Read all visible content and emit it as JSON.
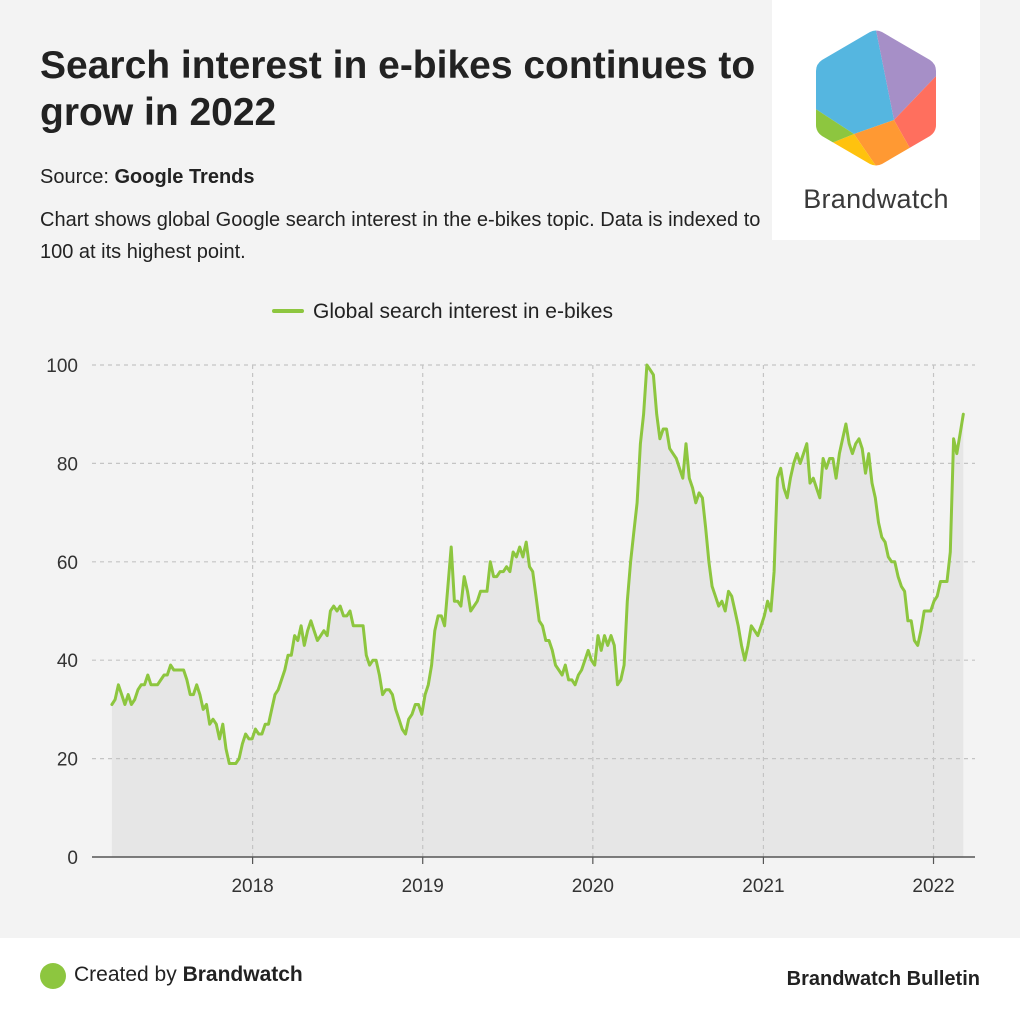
{
  "header": {
    "title": "Search interest in e-bikes continues to grow in 2022",
    "source_label": "Source:",
    "source_name": "Google Trends",
    "description": "Chart shows global Google search interest in the e-bikes topic. Data is indexed to 100 at its highest point."
  },
  "logo": {
    "name": "Brandwatch",
    "icon": "brandwatch-hexagon-logo",
    "colors": [
      "#55b6e0",
      "#a68fc7",
      "#ff6f5e",
      "#ff9933",
      "#ffc20e",
      "#8dc63f"
    ]
  },
  "footer": {
    "created_by_label": "Created by",
    "created_by_name": "Brandwatch",
    "bulletin": "Brandwatch Bulletin"
  },
  "colors": {
    "line": "#8dc63f",
    "area": "#e6e6e6",
    "grid": "#c4c4c4",
    "axis": "#555555"
  },
  "chart_data": {
    "type": "area",
    "title": "",
    "xlabel": "",
    "ylabel": "",
    "ylim": [
      0,
      100
    ],
    "yticks": [
      0,
      20,
      40,
      60,
      80,
      100
    ],
    "xticks": [
      "2018",
      "2019",
      "2020",
      "2021",
      "2022"
    ],
    "x_range": [
      "2017-03-01",
      "2022-03-31"
    ],
    "grid": true,
    "legend_position": "top-center",
    "series": [
      {
        "name": "Global search interest in e-bikes",
        "color": "#8dc63f",
        "points": [
          [
            "2017-03-05",
            31
          ],
          [
            "2017-03-12",
            32
          ],
          [
            "2017-03-19",
            35
          ],
          [
            "2017-03-26",
            33
          ],
          [
            "2017-04-02",
            31
          ],
          [
            "2017-04-09",
            33
          ],
          [
            "2017-04-16",
            31
          ],
          [
            "2017-04-23",
            32
          ],
          [
            "2017-04-30",
            34
          ],
          [
            "2017-05-07",
            35
          ],
          [
            "2017-05-14",
            35
          ],
          [
            "2017-05-21",
            37
          ],
          [
            "2017-05-28",
            35
          ],
          [
            "2017-06-04",
            35
          ],
          [
            "2017-06-11",
            35
          ],
          [
            "2017-06-18",
            36
          ],
          [
            "2017-06-25",
            37
          ],
          [
            "2017-07-02",
            37
          ],
          [
            "2017-07-09",
            39
          ],
          [
            "2017-07-16",
            38
          ],
          [
            "2017-07-23",
            38
          ],
          [
            "2017-07-30",
            38
          ],
          [
            "2017-08-06",
            38
          ],
          [
            "2017-08-13",
            36
          ],
          [
            "2017-08-20",
            33
          ],
          [
            "2017-08-27",
            33
          ],
          [
            "2017-09-03",
            35
          ],
          [
            "2017-09-10",
            33
          ],
          [
            "2017-09-17",
            30
          ],
          [
            "2017-09-24",
            31
          ],
          [
            "2017-10-01",
            27
          ],
          [
            "2017-10-08",
            28
          ],
          [
            "2017-10-15",
            27
          ],
          [
            "2017-10-22",
            24
          ],
          [
            "2017-10-29",
            27
          ],
          [
            "2017-11-05",
            22
          ],
          [
            "2017-11-12",
            19
          ],
          [
            "2017-11-19",
            19
          ],
          [
            "2017-11-26",
            19
          ],
          [
            "2017-12-03",
            20
          ],
          [
            "2017-12-10",
            23
          ],
          [
            "2017-12-17",
            25
          ],
          [
            "2017-12-24",
            24
          ],
          [
            "2017-12-31",
            24
          ],
          [
            "2018-01-07",
            26
          ],
          [
            "2018-01-14",
            25
          ],
          [
            "2018-01-21",
            25
          ],
          [
            "2018-01-28",
            27
          ],
          [
            "2018-02-04",
            27
          ],
          [
            "2018-02-11",
            30
          ],
          [
            "2018-02-18",
            33
          ],
          [
            "2018-02-25",
            34
          ],
          [
            "2018-03-04",
            36
          ],
          [
            "2018-03-11",
            38
          ],
          [
            "2018-03-18",
            41
          ],
          [
            "2018-03-25",
            41
          ],
          [
            "2018-04-01",
            45
          ],
          [
            "2018-04-08",
            44
          ],
          [
            "2018-04-15",
            47
          ],
          [
            "2018-04-22",
            43
          ],
          [
            "2018-04-29",
            46
          ],
          [
            "2018-05-06",
            48
          ],
          [
            "2018-05-13",
            46
          ],
          [
            "2018-05-20",
            44
          ],
          [
            "2018-05-27",
            45
          ],
          [
            "2018-06-03",
            46
          ],
          [
            "2018-06-10",
            45
          ],
          [
            "2018-06-17",
            50
          ],
          [
            "2018-06-24",
            51
          ],
          [
            "2018-07-01",
            50
          ],
          [
            "2018-07-08",
            51
          ],
          [
            "2018-07-15",
            49
          ],
          [
            "2018-07-22",
            49
          ],
          [
            "2018-07-29",
            50
          ],
          [
            "2018-08-05",
            47
          ],
          [
            "2018-08-12",
            47
          ],
          [
            "2018-08-19",
            47
          ],
          [
            "2018-08-26",
            47
          ],
          [
            "2018-09-02",
            41
          ],
          [
            "2018-09-09",
            39
          ],
          [
            "2018-09-16",
            40
          ],
          [
            "2018-09-23",
            40
          ],
          [
            "2018-09-30",
            37
          ],
          [
            "2018-10-07",
            33
          ],
          [
            "2018-10-14",
            34
          ],
          [
            "2018-10-21",
            34
          ],
          [
            "2018-10-28",
            33
          ],
          [
            "2018-11-04",
            30
          ],
          [
            "2018-11-11",
            28
          ],
          [
            "2018-11-18",
            26
          ],
          [
            "2018-11-25",
            25
          ],
          [
            "2018-12-02",
            28
          ],
          [
            "2018-12-09",
            29
          ],
          [
            "2018-12-16",
            31
          ],
          [
            "2018-12-23",
            31
          ],
          [
            "2018-12-30",
            29
          ],
          [
            "2019-01-06",
            33
          ],
          [
            "2019-01-13",
            35
          ],
          [
            "2019-01-20",
            39
          ],
          [
            "2019-01-27",
            46
          ],
          [
            "2019-02-03",
            49
          ],
          [
            "2019-02-10",
            49
          ],
          [
            "2019-02-17",
            47
          ],
          [
            "2019-02-24",
            55
          ],
          [
            "2019-03-03",
            63
          ],
          [
            "2019-03-10",
            52
          ],
          [
            "2019-03-17",
            52
          ],
          [
            "2019-03-24",
            51
          ],
          [
            "2019-03-31",
            57
          ],
          [
            "2019-04-07",
            54
          ],
          [
            "2019-04-14",
            50
          ],
          [
            "2019-04-21",
            51
          ],
          [
            "2019-04-28",
            52
          ],
          [
            "2019-05-05",
            54
          ],
          [
            "2019-05-12",
            54
          ],
          [
            "2019-05-19",
            54
          ],
          [
            "2019-05-26",
            60
          ],
          [
            "2019-06-02",
            57
          ],
          [
            "2019-06-09",
            57
          ],
          [
            "2019-06-16",
            58
          ],
          [
            "2019-06-23",
            58
          ],
          [
            "2019-06-30",
            59
          ],
          [
            "2019-07-07",
            58
          ],
          [
            "2019-07-14",
            62
          ],
          [
            "2019-07-21",
            61
          ],
          [
            "2019-07-28",
            63
          ],
          [
            "2019-08-04",
            61
          ],
          [
            "2019-08-11",
            64
          ],
          [
            "2019-08-18",
            59
          ],
          [
            "2019-08-25",
            58
          ],
          [
            "2019-09-01",
            53
          ],
          [
            "2019-09-08",
            48
          ],
          [
            "2019-09-15",
            47
          ],
          [
            "2019-09-22",
            44
          ],
          [
            "2019-09-29",
            44
          ],
          [
            "2019-10-06",
            42
          ],
          [
            "2019-10-13",
            39
          ],
          [
            "2019-10-20",
            38
          ],
          [
            "2019-10-27",
            37
          ],
          [
            "2019-11-03",
            39
          ],
          [
            "2019-11-10",
            36
          ],
          [
            "2019-11-17",
            36
          ],
          [
            "2019-11-24",
            35
          ],
          [
            "2019-12-01",
            37
          ],
          [
            "2019-12-08",
            38
          ],
          [
            "2019-12-15",
            40
          ],
          [
            "2019-12-22",
            42
          ],
          [
            "2019-12-29",
            40
          ],
          [
            "2020-01-05",
            39
          ],
          [
            "2020-01-12",
            45
          ],
          [
            "2020-01-19",
            42
          ],
          [
            "2020-01-26",
            45
          ],
          [
            "2020-02-02",
            43
          ],
          [
            "2020-02-09",
            45
          ],
          [
            "2020-02-16",
            43
          ],
          [
            "2020-02-23",
            35
          ],
          [
            "2020-03-01",
            36
          ],
          [
            "2020-03-08",
            39
          ],
          [
            "2020-03-15",
            52
          ],
          [
            "2020-03-22",
            60
          ],
          [
            "2020-03-29",
            66
          ],
          [
            "2020-04-05",
            72
          ],
          [
            "2020-04-12",
            84
          ],
          [
            "2020-04-19",
            90
          ],
          [
            "2020-04-26",
            100
          ],
          [
            "2020-05-03",
            99
          ],
          [
            "2020-05-10",
            98
          ],
          [
            "2020-05-17",
            90
          ],
          [
            "2020-05-24",
            85
          ],
          [
            "2020-05-31",
            87
          ],
          [
            "2020-06-07",
            87
          ],
          [
            "2020-06-14",
            83
          ],
          [
            "2020-06-21",
            82
          ],
          [
            "2020-06-28",
            81
          ],
          [
            "2020-07-05",
            79
          ],
          [
            "2020-07-12",
            77
          ],
          [
            "2020-07-19",
            84
          ],
          [
            "2020-07-26",
            77
          ],
          [
            "2020-08-02",
            75
          ],
          [
            "2020-08-09",
            72
          ],
          [
            "2020-08-16",
            74
          ],
          [
            "2020-08-23",
            73
          ],
          [
            "2020-08-30",
            67
          ],
          [
            "2020-09-06",
            60
          ],
          [
            "2020-09-13",
            55
          ],
          [
            "2020-09-20",
            53
          ],
          [
            "2020-09-27",
            51
          ],
          [
            "2020-10-04",
            52
          ],
          [
            "2020-10-11",
            50
          ],
          [
            "2020-10-18",
            54
          ],
          [
            "2020-10-25",
            53
          ],
          [
            "2020-11-01",
            50
          ],
          [
            "2020-11-08",
            47
          ],
          [
            "2020-11-15",
            43
          ],
          [
            "2020-11-22",
            40
          ],
          [
            "2020-11-29",
            43
          ],
          [
            "2020-12-06",
            47
          ],
          [
            "2020-12-13",
            46
          ],
          [
            "2020-12-20",
            45
          ],
          [
            "2020-12-27",
            47
          ],
          [
            "2021-01-03",
            49
          ],
          [
            "2021-01-10",
            52
          ],
          [
            "2021-01-17",
            50
          ],
          [
            "2021-01-24",
            58
          ],
          [
            "2021-01-31",
            77
          ],
          [
            "2021-02-07",
            79
          ],
          [
            "2021-02-14",
            75
          ],
          [
            "2021-02-21",
            73
          ],
          [
            "2021-02-28",
            77
          ],
          [
            "2021-03-07",
            80
          ],
          [
            "2021-03-14",
            82
          ],
          [
            "2021-03-21",
            80
          ],
          [
            "2021-03-28",
            82
          ],
          [
            "2021-04-04",
            84
          ],
          [
            "2021-04-11",
            76
          ],
          [
            "2021-04-18",
            77
          ],
          [
            "2021-04-25",
            75
          ],
          [
            "2021-05-02",
            73
          ],
          [
            "2021-05-09",
            81
          ],
          [
            "2021-05-16",
            79
          ],
          [
            "2021-05-23",
            81
          ],
          [
            "2021-05-30",
            81
          ],
          [
            "2021-06-06",
            77
          ],
          [
            "2021-06-13",
            82
          ],
          [
            "2021-06-20",
            85
          ],
          [
            "2021-06-27",
            88
          ],
          [
            "2021-07-04",
            84
          ],
          [
            "2021-07-11",
            82
          ],
          [
            "2021-07-18",
            84
          ],
          [
            "2021-07-25",
            85
          ],
          [
            "2021-08-01",
            83
          ],
          [
            "2021-08-08",
            78
          ],
          [
            "2021-08-15",
            82
          ],
          [
            "2021-08-22",
            76
          ],
          [
            "2021-08-29",
            73
          ],
          [
            "2021-09-05",
            68
          ],
          [
            "2021-09-12",
            65
          ],
          [
            "2021-09-19",
            64
          ],
          [
            "2021-09-26",
            61
          ],
          [
            "2021-10-03",
            60
          ],
          [
            "2021-10-10",
            60
          ],
          [
            "2021-10-17",
            57
          ],
          [
            "2021-10-24",
            55
          ],
          [
            "2021-10-31",
            54
          ],
          [
            "2021-11-07",
            48
          ],
          [
            "2021-11-14",
            48
          ],
          [
            "2021-11-21",
            44
          ],
          [
            "2021-11-28",
            43
          ],
          [
            "2021-12-05",
            46
          ],
          [
            "2021-12-12",
            50
          ],
          [
            "2021-12-19",
            50
          ],
          [
            "2021-12-26",
            50
          ],
          [
            "2022-01-02",
            52
          ],
          [
            "2022-01-09",
            53
          ],
          [
            "2022-01-16",
            56
          ],
          [
            "2022-01-23",
            56
          ],
          [
            "2022-01-30",
            56
          ],
          [
            "2022-02-06",
            62
          ],
          [
            "2022-02-13",
            85
          ],
          [
            "2022-02-20",
            82
          ],
          [
            "2022-02-27",
            86
          ],
          [
            "2022-03-06",
            90
          ]
        ]
      }
    ]
  }
}
